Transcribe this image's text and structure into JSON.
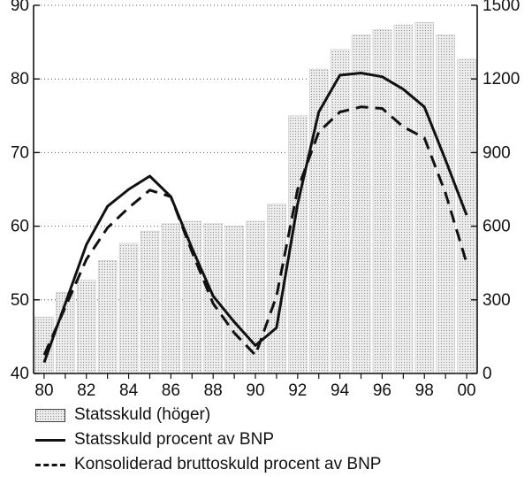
{
  "chart_data": {
    "type": "bar",
    "x": [
      "80",
      "81",
      "82",
      "83",
      "84",
      "85",
      "86",
      "87",
      "88",
      "89",
      "90",
      "91",
      "92",
      "93",
      "94",
      "95",
      "96",
      "97",
      "98",
      "99",
      "00"
    ],
    "x_tick_labels": [
      "80",
      "82",
      "84",
      "86",
      "88",
      "90",
      "92",
      "94",
      "96",
      "98",
      "00"
    ],
    "left_axis": {
      "ylim": [
        40,
        90
      ],
      "ticks": [
        "40",
        "50",
        "60",
        "70",
        "80",
        "90"
      ]
    },
    "right_axis": {
      "ylim": [
        0,
        1500
      ],
      "ticks": [
        "0",
        "300",
        "600",
        "900",
        "1200",
        "1500"
      ]
    },
    "grid": "horizontal dotted",
    "legend_placement": "below",
    "series": [
      {
        "name": "Statsskuld (höger)",
        "type": "bar",
        "axis": "right",
        "color": "#e8e8e8",
        "values": [
          230,
          330,
          380,
          460,
          530,
          580,
          610,
          620,
          610,
          600,
          620,
          690,
          1050,
          1240,
          1320,
          1380,
          1400,
          1420,
          1430,
          1380,
          1280
        ]
      },
      {
        "name": "Statsskuld procent av BNP",
        "type": "line",
        "axis": "left",
        "color": "#111111",
        "style": "solid",
        "values": [
          41.5,
          49.5,
          57.5,
          62.7,
          65.0,
          66.8,
          64.0,
          57.0,
          50.5,
          47.0,
          43.8,
          46.2,
          63.0,
          75.5,
          80.5,
          80.8,
          80.3,
          78.6,
          76.2,
          69.0,
          61.5
        ]
      },
      {
        "name": "Konsoliderad bruttoskuld procent av BNP",
        "type": "line",
        "axis": "left",
        "color": "#111111",
        "style": "dashed",
        "values": [
          42.5,
          49.0,
          55.5,
          59.8,
          62.5,
          64.9,
          64.0,
          56.5,
          49.5,
          45.5,
          42.5,
          50.5,
          65.0,
          72.8,
          75.5,
          76.2,
          76.0,
          73.5,
          72.0,
          64.5,
          55.0
        ]
      }
    ]
  }
}
